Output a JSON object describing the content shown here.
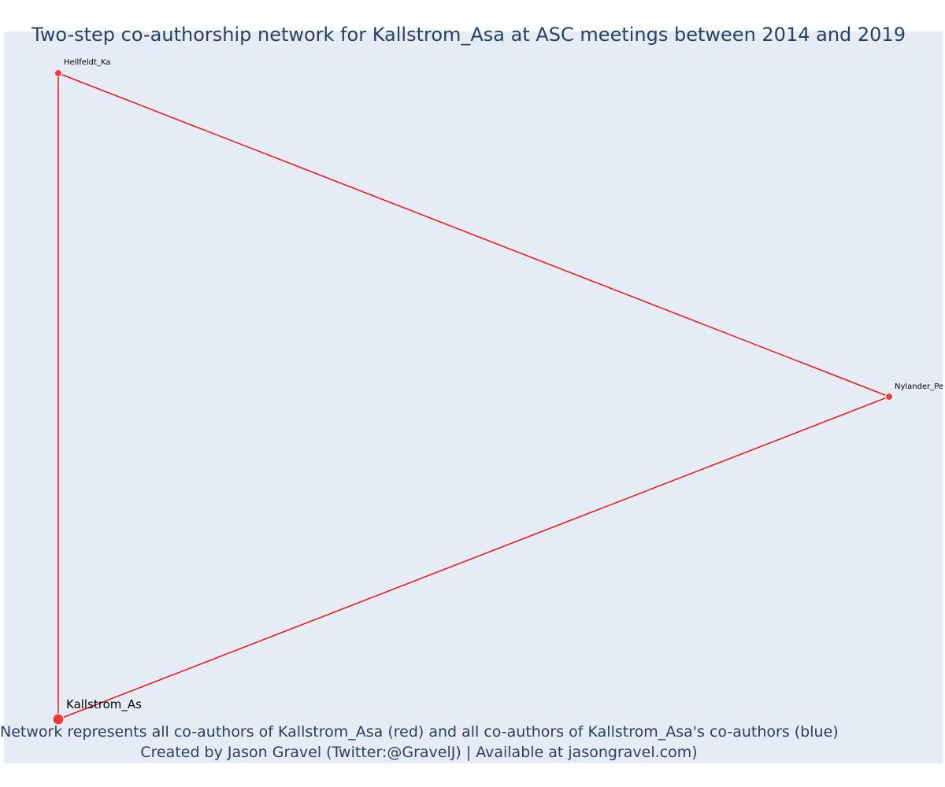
{
  "title": "Two-step co-authorship network for Kallstrom_Asa at ASC meetings between 2014 and 2019",
  "caption": {
    "line1": "Network represents all co-authors of Kallstrom_Asa (red) and all co-authors of Kallstrom_Asa's co-authors (blue)",
    "line2": "Created by Jason Gravel (Twitter:@GravelJ) | Available at jasongravel.com)"
  },
  "colors": {
    "background": "#e5ecf6",
    "edge": "#ee1111",
    "node": "#ef3b3b",
    "node_outline": "#ffffff",
    "text": "#2a3f5f"
  },
  "network": {
    "nodes": [
      {
        "id": "hellfeldt",
        "label": "Hellfeldt_Ka",
        "role": "co-author",
        "size": "small"
      },
      {
        "id": "nylander",
        "label": "Nylander_Pe",
        "role": "co-author",
        "size": "small"
      },
      {
        "id": "kallstrom",
        "label": "Kallstrom_As",
        "role": "focal",
        "size": "large"
      }
    ],
    "edges": [
      {
        "source": "hellfeldt",
        "target": "nylander"
      },
      {
        "source": "hellfeldt",
        "target": "kallstrom"
      },
      {
        "source": "nylander",
        "target": "kallstrom"
      }
    ]
  }
}
